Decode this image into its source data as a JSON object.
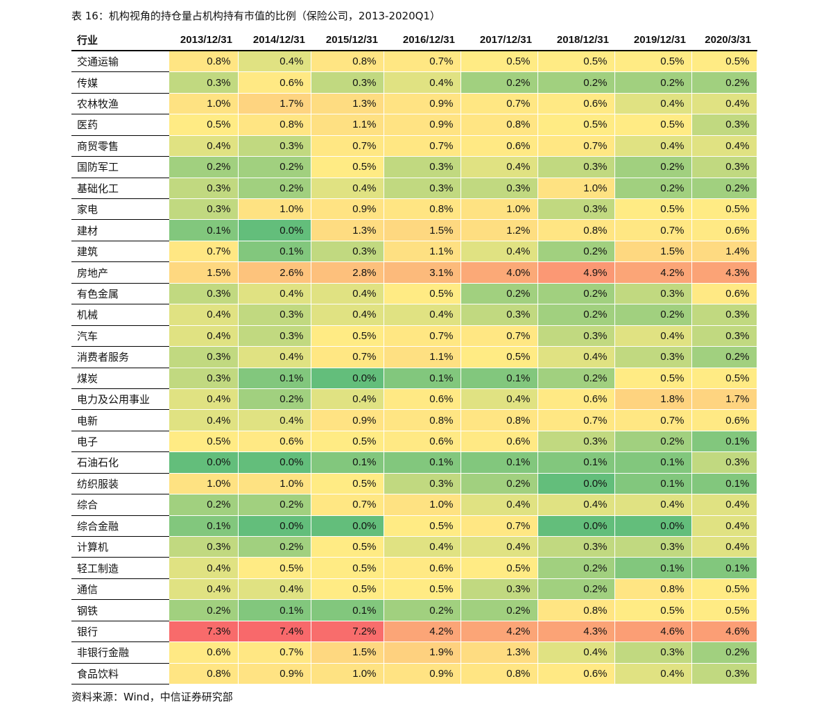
{
  "title": "表 16：机构视角的持仓量占机构持有市值的比例（保险公司，2013-2020Q1）",
  "source": "资料来源：Wind，中信证券研究部",
  "columns": [
    "行业",
    "2013/12/31",
    "2014/12/31",
    "2015/12/31",
    "2016/12/31",
    "2017/12/31",
    "2018/12/31",
    "2019/12/31",
    "2020/3/31"
  ],
  "color_scale": {
    "low": "#63BE7B",
    "mid": "#FFEB84",
    "high": "#F8696B",
    "min": 0.0,
    "mid_value": 0.5,
    "max": 7.4
  },
  "rows": [
    {
      "industry": "交通运输",
      "values": [
        "0.8%",
        "0.4%",
        "0.8%",
        "0.7%",
        "0.5%",
        "0.5%",
        "0.5%",
        "0.5%"
      ]
    },
    {
      "industry": "传媒",
      "values": [
        "0.3%",
        "0.6%",
        "0.3%",
        "0.4%",
        "0.2%",
        "0.2%",
        "0.2%",
        "0.2%"
      ]
    },
    {
      "industry": "农林牧渔",
      "values": [
        "1.0%",
        "1.7%",
        "1.3%",
        "0.9%",
        "0.7%",
        "0.6%",
        "0.4%",
        "0.4%"
      ]
    },
    {
      "industry": "医药",
      "values": [
        "0.5%",
        "0.8%",
        "1.1%",
        "0.9%",
        "0.8%",
        "0.5%",
        "0.5%",
        "0.3%"
      ]
    },
    {
      "industry": "商贸零售",
      "values": [
        "0.4%",
        "0.3%",
        "0.7%",
        "0.7%",
        "0.6%",
        "0.7%",
        "0.4%",
        "0.4%"
      ]
    },
    {
      "industry": "国防军工",
      "values": [
        "0.2%",
        "0.2%",
        "0.5%",
        "0.3%",
        "0.4%",
        "0.3%",
        "0.2%",
        "0.3%"
      ]
    },
    {
      "industry": "基础化工",
      "values": [
        "0.3%",
        "0.2%",
        "0.4%",
        "0.3%",
        "0.3%",
        "1.0%",
        "0.2%",
        "0.2%"
      ]
    },
    {
      "industry": "家电",
      "values": [
        "0.3%",
        "1.0%",
        "0.9%",
        "0.8%",
        "1.0%",
        "0.3%",
        "0.5%",
        "0.5%"
      ]
    },
    {
      "industry": "建材",
      "values": [
        "0.1%",
        "0.0%",
        "1.3%",
        "1.5%",
        "1.2%",
        "0.8%",
        "0.7%",
        "0.6%"
      ]
    },
    {
      "industry": "建筑",
      "values": [
        "0.7%",
        "0.1%",
        "0.3%",
        "1.1%",
        "0.4%",
        "0.2%",
        "1.5%",
        "1.4%"
      ]
    },
    {
      "industry": "房地产",
      "values": [
        "1.5%",
        "2.6%",
        "2.8%",
        "3.1%",
        "4.0%",
        "4.9%",
        "4.2%",
        "4.3%"
      ]
    },
    {
      "industry": "有色金属",
      "values": [
        "0.3%",
        "0.4%",
        "0.4%",
        "0.5%",
        "0.2%",
        "0.2%",
        "0.3%",
        "0.6%"
      ]
    },
    {
      "industry": "机械",
      "values": [
        "0.4%",
        "0.3%",
        "0.4%",
        "0.4%",
        "0.3%",
        "0.2%",
        "0.2%",
        "0.3%"
      ]
    },
    {
      "industry": "汽车",
      "values": [
        "0.4%",
        "0.3%",
        "0.5%",
        "0.7%",
        "0.7%",
        "0.3%",
        "0.4%",
        "0.3%"
      ]
    },
    {
      "industry": "消费者服务",
      "values": [
        "0.3%",
        "0.4%",
        "0.7%",
        "1.1%",
        "0.5%",
        "0.4%",
        "0.3%",
        "0.2%"
      ]
    },
    {
      "industry": "煤炭",
      "values": [
        "0.3%",
        "0.1%",
        "0.0%",
        "0.1%",
        "0.1%",
        "0.2%",
        "0.5%",
        "0.5%"
      ]
    },
    {
      "industry": "电力及公用事业",
      "values": [
        "0.4%",
        "0.2%",
        "0.4%",
        "0.6%",
        "0.4%",
        "0.6%",
        "1.8%",
        "1.7%"
      ]
    },
    {
      "industry": "电新",
      "values": [
        "0.4%",
        "0.4%",
        "0.9%",
        "0.8%",
        "0.8%",
        "0.7%",
        "0.7%",
        "0.6%"
      ]
    },
    {
      "industry": "电子",
      "values": [
        "0.5%",
        "0.6%",
        "0.5%",
        "0.6%",
        "0.6%",
        "0.3%",
        "0.2%",
        "0.1%"
      ]
    },
    {
      "industry": "石油石化",
      "values": [
        "0.0%",
        "0.0%",
        "0.1%",
        "0.1%",
        "0.1%",
        "0.1%",
        "0.1%",
        "0.3%"
      ]
    },
    {
      "industry": "纺织服装",
      "values": [
        "1.0%",
        "1.0%",
        "0.5%",
        "0.3%",
        "0.2%",
        "0.0%",
        "0.1%",
        "0.1%"
      ]
    },
    {
      "industry": "综合",
      "values": [
        "0.2%",
        "0.2%",
        "0.7%",
        "1.0%",
        "0.4%",
        "0.4%",
        "0.4%",
        "0.4%"
      ]
    },
    {
      "industry": "综合金融",
      "values": [
        "0.1%",
        "0.0%",
        "0.0%",
        "0.5%",
        "0.7%",
        "0.0%",
        "0.0%",
        "0.4%"
      ]
    },
    {
      "industry": "计算机",
      "values": [
        "0.3%",
        "0.2%",
        "0.5%",
        "0.4%",
        "0.4%",
        "0.3%",
        "0.3%",
        "0.4%"
      ]
    },
    {
      "industry": "轻工制造",
      "values": [
        "0.4%",
        "0.5%",
        "0.5%",
        "0.6%",
        "0.5%",
        "0.2%",
        "0.1%",
        "0.1%"
      ]
    },
    {
      "industry": "通信",
      "values": [
        "0.4%",
        "0.4%",
        "0.5%",
        "0.5%",
        "0.3%",
        "0.2%",
        "0.8%",
        "0.5%"
      ]
    },
    {
      "industry": "钢铁",
      "values": [
        "0.2%",
        "0.1%",
        "0.1%",
        "0.2%",
        "0.2%",
        "0.8%",
        "0.5%",
        "0.5%"
      ]
    },
    {
      "industry": "银行",
      "values": [
        "7.3%",
        "7.4%",
        "7.2%",
        "4.2%",
        "4.2%",
        "4.3%",
        "4.6%",
        "4.6%"
      ]
    },
    {
      "industry": "非银行金融",
      "values": [
        "0.6%",
        "0.7%",
        "1.5%",
        "1.9%",
        "1.3%",
        "0.4%",
        "0.3%",
        "0.2%"
      ]
    },
    {
      "industry": "食品饮料",
      "values": [
        "0.8%",
        "0.9%",
        "1.0%",
        "0.9%",
        "0.8%",
        "0.6%",
        "0.4%",
        "0.3%"
      ]
    }
  ]
}
